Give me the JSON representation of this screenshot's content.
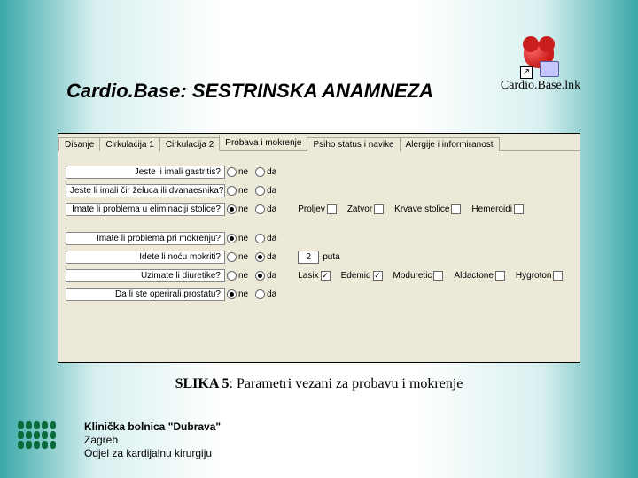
{
  "title": "Cardio.Base: SESTRINSKA ANAMNEZA",
  "shortcut_label": "Cardio.Base.lnk",
  "tabs": [
    "Disanje",
    "Cirkulacija 1",
    "Cirkulacija 2",
    "Probava i mokrenje",
    "Psiho status i navike",
    "Alergije i informiranost"
  ],
  "active_tab_index": 3,
  "radio_labels": {
    "ne": "ne",
    "da": "da"
  },
  "group1": [
    {
      "q": "Jeste li imali gastritis?",
      "selected": null
    },
    {
      "q": "Jeste li imali čir želuca ili dvanaesnika?",
      "selected": null
    },
    {
      "q": "Imate li problema u eliminaciji stolice?",
      "selected": "ne",
      "checks": [
        {
          "label": "Proljev",
          "checked": false
        },
        {
          "label": "Zatvor",
          "checked": false
        },
        {
          "label": "Krvave stolice",
          "checked": false
        },
        {
          "label": "Hemeroidi",
          "checked": false
        }
      ]
    }
  ],
  "group2": [
    {
      "q": "Imate li problema pri mokrenju?",
      "selected": "ne"
    },
    {
      "q": "Idete li noću mokriti?",
      "selected": "da",
      "num_value": "2",
      "num_suffix": "puta"
    },
    {
      "q": "Uzimate li diuretike?",
      "selected": "da",
      "checks": [
        {
          "label": "Lasix",
          "checked": true
        },
        {
          "label": "Edemid",
          "checked": true
        },
        {
          "label": "Moduretic",
          "checked": false
        },
        {
          "label": "Aldactone",
          "checked": false
        },
        {
          "label": "Hygroton",
          "checked": false
        }
      ]
    },
    {
      "q": "Da li ste operirali prostatu?",
      "selected": "ne"
    }
  ],
  "caption_bold": "SLIKA 5",
  "caption_rest": ": Parametri vezani za probavu i mokrenje",
  "footer": {
    "line1": "Klinička bolnica \"Dubrava\"",
    "line2": "Zagreb",
    "line3": "Odjel za kardijalnu kirurgiju"
  },
  "colors": {
    "panel_bg": "#ece9d8",
    "border": "#aca899"
  }
}
